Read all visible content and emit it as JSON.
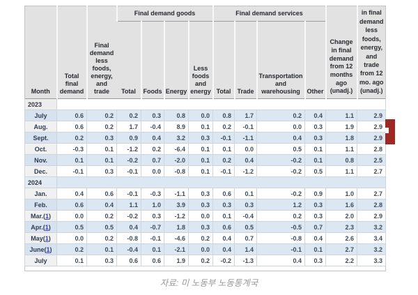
{
  "colors": {
    "row_blue": "#dce7f4",
    "header_gray": "#e2e2e2",
    "marker_red": "#9e2823",
    "footnote_link_blue": "#3a3acb"
  },
  "caption": "자료: 미 노동부 노동통계국",
  "chart_data": {
    "type": "table",
    "group_headers": [
      {
        "label": "Final demand goods",
        "span": 4
      },
      {
        "label": "Final demand services",
        "span": 4
      }
    ],
    "columns": [
      "Month",
      "Total final demand",
      "Final demand less foods, energy, and trade",
      "Total",
      "Foods",
      "Energy",
      "Less foods and energy",
      "Total",
      "Trade",
      "Transportation and warehousing",
      "Other",
      "Change in final demand from 12 months ago (unadj.)",
      "in final demand less foods, energy, and trade from 12 mo. ago (unadj.)"
    ],
    "rows": [
      {
        "type": "year",
        "label": "2023"
      },
      {
        "type": "month",
        "label": "July",
        "values": [
          "0.6",
          "0.2",
          "0.2",
          "0.3",
          "0.8",
          "0.0",
          "0.8",
          "1.7",
          "0.2",
          "0.4",
          "1.1",
          "2.9"
        ]
      },
      {
        "type": "month",
        "label": "Aug.",
        "values": [
          "0.6",
          "0.2",
          "1.7",
          "-0.4",
          "8.9",
          "0.1",
          "0.2",
          "-0.1",
          "0.0",
          "0.3",
          "1.9",
          "2.9"
        ]
      },
      {
        "type": "month",
        "label": "Sept.",
        "values": [
          "0.2",
          "0.3",
          "0.9",
          "0.4",
          "3.2",
          "0.3",
          "-0.1",
          "-1.1",
          "0.4",
          "0.3",
          "1.8",
          "2.9"
        ]
      },
      {
        "type": "month",
        "label": "Oct.",
        "values": [
          "-0.3",
          "0.1",
          "-1.2",
          "0.2",
          "-6.4",
          "0.1",
          "0.1",
          "0.0",
          "0.5",
          "0.1",
          "1.1",
          "2.8"
        ]
      },
      {
        "type": "month",
        "label": "Nov.",
        "values": [
          "0.1",
          "0.1",
          "-0.2",
          "0.7",
          "-2.0",
          "0.1",
          "0.2",
          "0.4",
          "-0.2",
          "0.1",
          "0.8",
          "2.5"
        ]
      },
      {
        "type": "month",
        "label": "Dec.",
        "values": [
          "-0.1",
          "0.3",
          "-0.1",
          "0.0",
          "-0.8",
          "0.1",
          "-0.1",
          "-1.2",
          "-0.2",
          "0.5",
          "1.1",
          "2.7"
        ]
      },
      {
        "type": "year",
        "label": "2024"
      },
      {
        "type": "month",
        "label": "Jan.",
        "values": [
          "0.4",
          "0.6",
          "-0.1",
          "-0.3",
          "-1.1",
          "0.3",
          "0.6",
          "0.1",
          "-0.2",
          "0.9",
          "1.0",
          "2.7"
        ]
      },
      {
        "type": "month",
        "label": "Feb.",
        "values": [
          "0.6",
          "0.4",
          "1.1",
          "1.0",
          "3.9",
          "0.3",
          "0.3",
          "0.3",
          "1.2",
          "0.3",
          "1.6",
          "2.8"
        ]
      },
      {
        "type": "month",
        "label": "Mar.",
        "footnote": "1",
        "values": [
          "0.0",
          "0.2",
          "-0.2",
          "0.3",
          "-1.2",
          "0.0",
          "0.1",
          "-0.4",
          "0.2",
          "0.3",
          "2.0",
          "2.9"
        ]
      },
      {
        "type": "month",
        "label": "Apr.",
        "footnote": "1",
        "values": [
          "0.5",
          "0.5",
          "0.4",
          "-0.7",
          "1.8",
          "0.3",
          "0.6",
          "0.5",
          "-0.5",
          "0.7",
          "2.3",
          "3.2"
        ]
      },
      {
        "type": "month",
        "label": "May",
        "footnote": "1",
        "values": [
          "0.0",
          "0.2",
          "-0.8",
          "-0.1",
          "-4.6",
          "0.2",
          "0.4",
          "0.7",
          "-0.8",
          "0.4",
          "2.6",
          "3.4"
        ]
      },
      {
        "type": "month",
        "label": "June",
        "footnote": "1",
        "values": [
          "0.2",
          "0.1",
          "-0.4",
          "0.1",
          "-2.1",
          "0.0",
          "0.4",
          "1.4",
          "-0.1",
          "0.1",
          "2.7",
          "3.2"
        ]
      },
      {
        "type": "month",
        "label": "July",
        "values": [
          "0.1",
          "0.3",
          "0.6",
          "0.6",
          "1.9",
          "0.2",
          "-0.2",
          "-1.3",
          "0.4",
          "0.3",
          "2.2",
          "3.3"
        ]
      }
    ]
  }
}
